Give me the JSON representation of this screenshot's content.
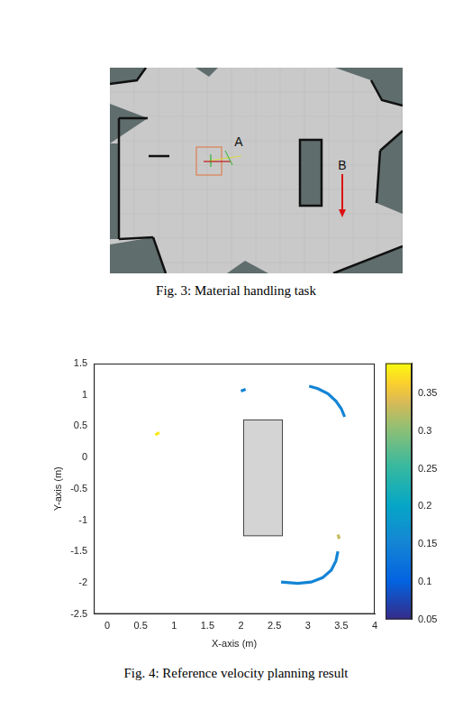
{
  "figure3": {
    "caption": "Fig. 3: Material handling task",
    "labels": [
      "A",
      "B"
    ]
  },
  "chart_data": {
    "type": "line",
    "caption": "Fig. 4: Reference velocity planning result",
    "x_label": "X-axis (m)",
    "y_label": "Y-axis (m)",
    "xlim": [
      -0.2,
      4
    ],
    "xticks": [
      0,
      0.5,
      1,
      1.5,
      2,
      2.5,
      3,
      3.5,
      4
    ],
    "ylim": [
      -2.5,
      1.5
    ],
    "yticks": [
      -2.5,
      -2,
      -1.5,
      -1,
      -0.5,
      0,
      0.5,
      1,
      1.5
    ],
    "grid": false,
    "obstacle": {
      "x": [
        2.04,
        2.62
      ],
      "y": [
        -1.25,
        0.6
      ]
    },
    "series": [
      {
        "x": [
          0.72,
          0.78
        ],
        "y": [
          0.36,
          0.4
        ],
        "velocity": 0.38
      },
      {
        "x": [
          2.0,
          2.07
        ],
        "y": [
          1.06,
          1.09
        ],
        "velocity": 0.15
      },
      {
        "x": [
          3.02,
          3.15,
          3.3,
          3.42,
          3.5,
          3.55
        ],
        "y": [
          1.14,
          1.1,
          1.02,
          0.9,
          0.78,
          0.65
        ],
        "velocity": 0.15
      },
      {
        "x": [
          3.45,
          3.47
        ],
        "y": [
          -1.23,
          -1.3
        ],
        "velocity": 0.33
      },
      {
        "x": [
          3.45,
          3.42,
          3.35,
          3.22,
          3.05,
          2.85,
          2.6
        ],
        "y": [
          -1.5,
          -1.65,
          -1.8,
          -1.92,
          -1.99,
          -2.01,
          -1.99
        ],
        "velocity": 0.15
      }
    ],
    "colorbar": {
      "range": [
        0.05,
        0.39
      ],
      "ticks": [
        0.05,
        0.1,
        0.15,
        0.2,
        0.25,
        0.3,
        0.35
      ]
    }
  }
}
